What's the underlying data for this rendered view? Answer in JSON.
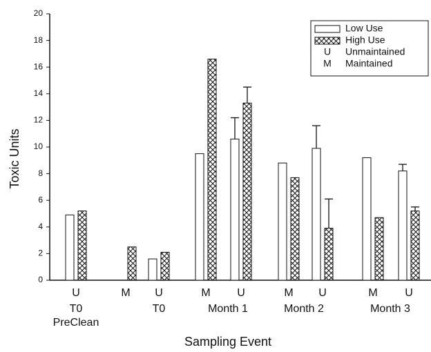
{
  "chart_data": {
    "type": "bar",
    "y_label": "Toxic Units",
    "x_label": "Sampling Event",
    "categories": [
      "U",
      "M",
      "U",
      "M",
      "U",
      "M",
      "U",
      "M",
      "U"
    ],
    "groups": [
      [
        "T0",
        "PreClean"
      ],
      [
        "T0"
      ],
      [
        "Month 1"
      ],
      [
        "Month 2"
      ],
      [
        "Month 3"
      ]
    ],
    "series": [
      {
        "name": "Low Use",
        "pattern": "none",
        "values": [
          4.9,
          null,
          1.6,
          9.5,
          10.6,
          8.8,
          9.9,
          9.2,
          8.2
        ],
        "errors": [
          null,
          null,
          null,
          null,
          1.6,
          null,
          1.7,
          null,
          0.5
        ]
      },
      {
        "name": "High Use",
        "pattern": "crosshatch",
        "values": [
          5.2,
          2.5,
          2.1,
          16.6,
          13.3,
          7.7,
          3.9,
          4.7,
          5.2
        ],
        "errors": [
          null,
          null,
          null,
          null,
          1.2,
          null,
          2.2,
          null,
          0.3
        ]
      }
    ],
    "legend_notes": [
      {
        "code": "U",
        "text": "Unmaintained"
      },
      {
        "code": "M",
        "text": "Maintained"
      }
    ],
    "ylim": [
      0,
      20
    ],
    "yticks": [
      0,
      2,
      4,
      6,
      8,
      10,
      12,
      14,
      16,
      18,
      20
    ]
  }
}
